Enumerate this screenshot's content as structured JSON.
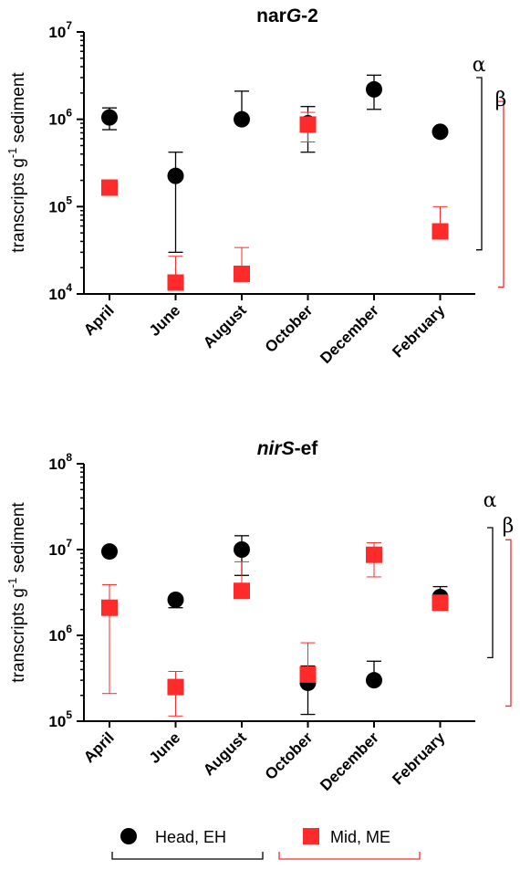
{
  "colors": {
    "head": "#000000",
    "mid": "#ff2a2a"
  },
  "legend": [
    {
      "label": "Head, EH",
      "marker": "circle",
      "color": "#000000"
    },
    {
      "label": "Mid, ME",
      "marker": "square",
      "color": "#ff2a2a"
    }
  ],
  "chart_data": [
    {
      "type": "scatter",
      "title_prefix": "nar",
      "title_italic": "G",
      "title_suffix": "-2",
      "ylabel_pre": "transcripts g",
      "ylabel_sup": "-1",
      "ylabel_post": " sediment",
      "yscale": "log",
      "ylim": [
        10000,
        10000000
      ],
      "yticks": [
        {
          "base": "10",
          "exp": "4",
          "value": 10000
        },
        {
          "base": "10",
          "exp": "5",
          "value": 100000
        },
        {
          "base": "10",
          "exp": "6",
          "value": 1000000
        },
        {
          "base": "10",
          "exp": "7",
          "value": 10000000
        }
      ],
      "categories": [
        "April",
        "June",
        "August",
        "October",
        "December",
        "February"
      ],
      "series": [
        {
          "name": "Head, EH",
          "marker": "circle",
          "values": [
            1050000,
            225000,
            1000000,
            900000,
            2200000,
            720000
          ],
          "err_low": [
            760000,
            30000,
            null,
            420000,
            1300000,
            null
          ],
          "err_high": [
            1350000,
            420000,
            2100000,
            1400000,
            3200000,
            null
          ]
        },
        {
          "name": "Mid, ME",
          "marker": "square",
          "values": [
            165000,
            13500,
            17000,
            870000,
            null,
            52000
          ],
          "err_low": [
            null,
            null,
            null,
            550000,
            null,
            null
          ],
          "err_high": [
            null,
            27000,
            34000,
            1200000,
            null,
            100000
          ]
        }
      ],
      "significance": [
        {
          "symbol": "α",
          "series": "Head, EH",
          "low": 32000,
          "high": 3000000
        },
        {
          "symbol": "β",
          "series": "Mid, ME",
          "low": 12000,
          "high": 1600000
        }
      ]
    },
    {
      "type": "scatter",
      "title_prefix": "",
      "title_italic": "nirS",
      "title_suffix": "-ef",
      "ylabel_pre": "transcripts g",
      "ylabel_sup": "-1",
      "ylabel_post": " sediment",
      "yscale": "log",
      "ylim": [
        100000,
        100000000
      ],
      "yticks": [
        {
          "base": "10",
          "exp": "5",
          "value": 100000
        },
        {
          "base": "10",
          "exp": "6",
          "value": 1000000
        },
        {
          "base": "10",
          "exp": "7",
          "value": 10000000
        },
        {
          "base": "10",
          "exp": "8",
          "value": 100000000
        }
      ],
      "categories": [
        "April",
        "June",
        "August",
        "October",
        "December",
        "February"
      ],
      "series": [
        {
          "name": "Head, EH",
          "marker": "circle",
          "values": [
            9500000,
            2600000,
            10000000,
            280000,
            300000,
            2800000
          ],
          "err_low": [
            null,
            2100000,
            5000000,
            120000,
            null,
            2300000
          ],
          "err_high": [
            null,
            null,
            14500000,
            440000,
            500000,
            3700000
          ]
        },
        {
          "name": "Mid, ME",
          "marker": "square",
          "values": [
            2100000,
            250000,
            3300000,
            350000,
            8700000,
            2400000
          ],
          "err_low": [
            210000,
            115000,
            null,
            null,
            4800000,
            null
          ],
          "err_high": [
            3900000,
            380000,
            7200000,
            820000,
            12000000,
            null
          ]
        }
      ],
      "significance": [
        {
          "symbol": "α",
          "series": "Head, EH",
          "low": 550000,
          "high": 18000000
        },
        {
          "symbol": "β",
          "series": "Mid, ME",
          "low": 150000,
          "high": 13000000
        }
      ]
    }
  ]
}
